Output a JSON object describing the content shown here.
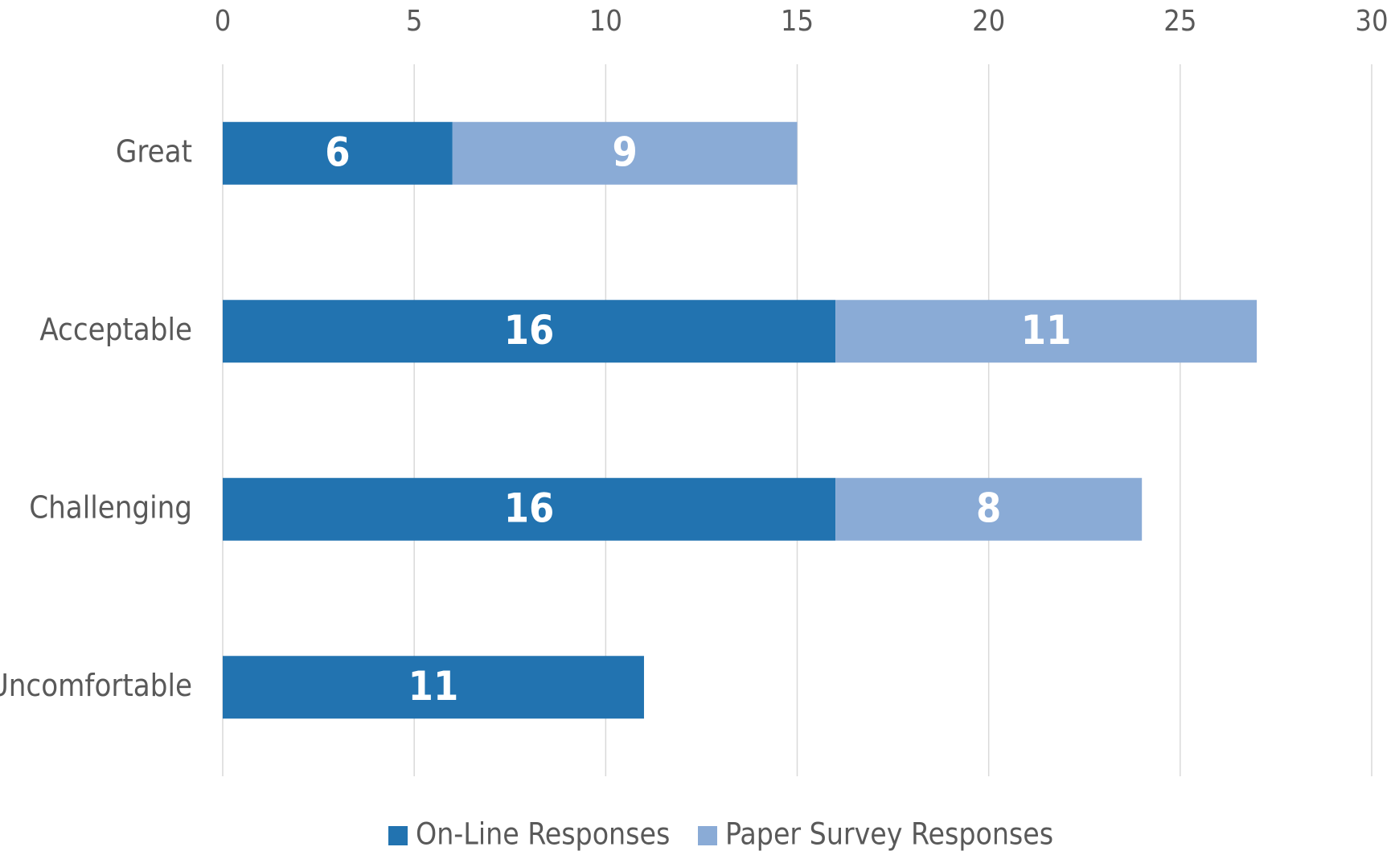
{
  "chart_data": {
    "type": "stacked_bar_horizontal",
    "categories": [
      "Great",
      "Acceptable",
      "Challenging",
      "Uncomfortable"
    ],
    "series": [
      {
        "name": "On-Line Responses",
        "color": "#2273b0",
        "values": [
          6,
          16,
          16,
          11
        ]
      },
      {
        "name": "Paper Survey Responses",
        "color": "#8aabd6",
        "values": [
          9,
          11,
          8,
          null
        ]
      }
    ],
    "xlim": [
      0,
      30
    ],
    "xticks": [
      0,
      5,
      10,
      15,
      20,
      25,
      30
    ],
    "grid": true,
    "legend": "bottom"
  }
}
